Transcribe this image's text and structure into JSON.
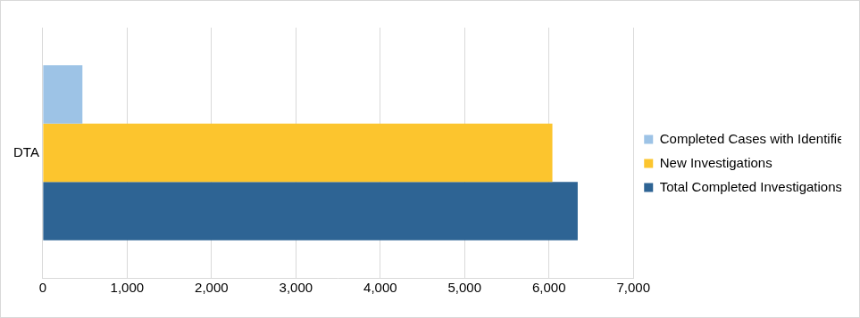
{
  "chart_data": {
    "type": "bar",
    "orientation": "horizontal",
    "categories": [
      "DTA"
    ],
    "series": [
      {
        "name": "Completed Cases with Identified Fraud",
        "color": "#9dc3e6",
        "values": [
          470
        ]
      },
      {
        "name": "New Investigations",
        "color": "#fcc52e",
        "values": [
          6040
        ]
      },
      {
        "name": "Total Completed Investigations",
        "color": "#2e6494",
        "values": [
          6340
        ]
      }
    ],
    "xlim": [
      0,
      7000
    ],
    "xticks": [
      0,
      {
        "value": 1000,
        "label": "1,000"
      },
      {
        "value": 2000,
        "label": "2,000"
      },
      {
        "value": 3000,
        "label": "3,000"
      },
      {
        "value": 4000,
        "label": "4,000"
      },
      {
        "value": 5000,
        "label": "5,000"
      },
      {
        "value": 6000,
        "label": "6,000"
      },
      {
        "value": 7000,
        "label": "7,000"
      }
    ],
    "grid": true,
    "legend": "right"
  }
}
